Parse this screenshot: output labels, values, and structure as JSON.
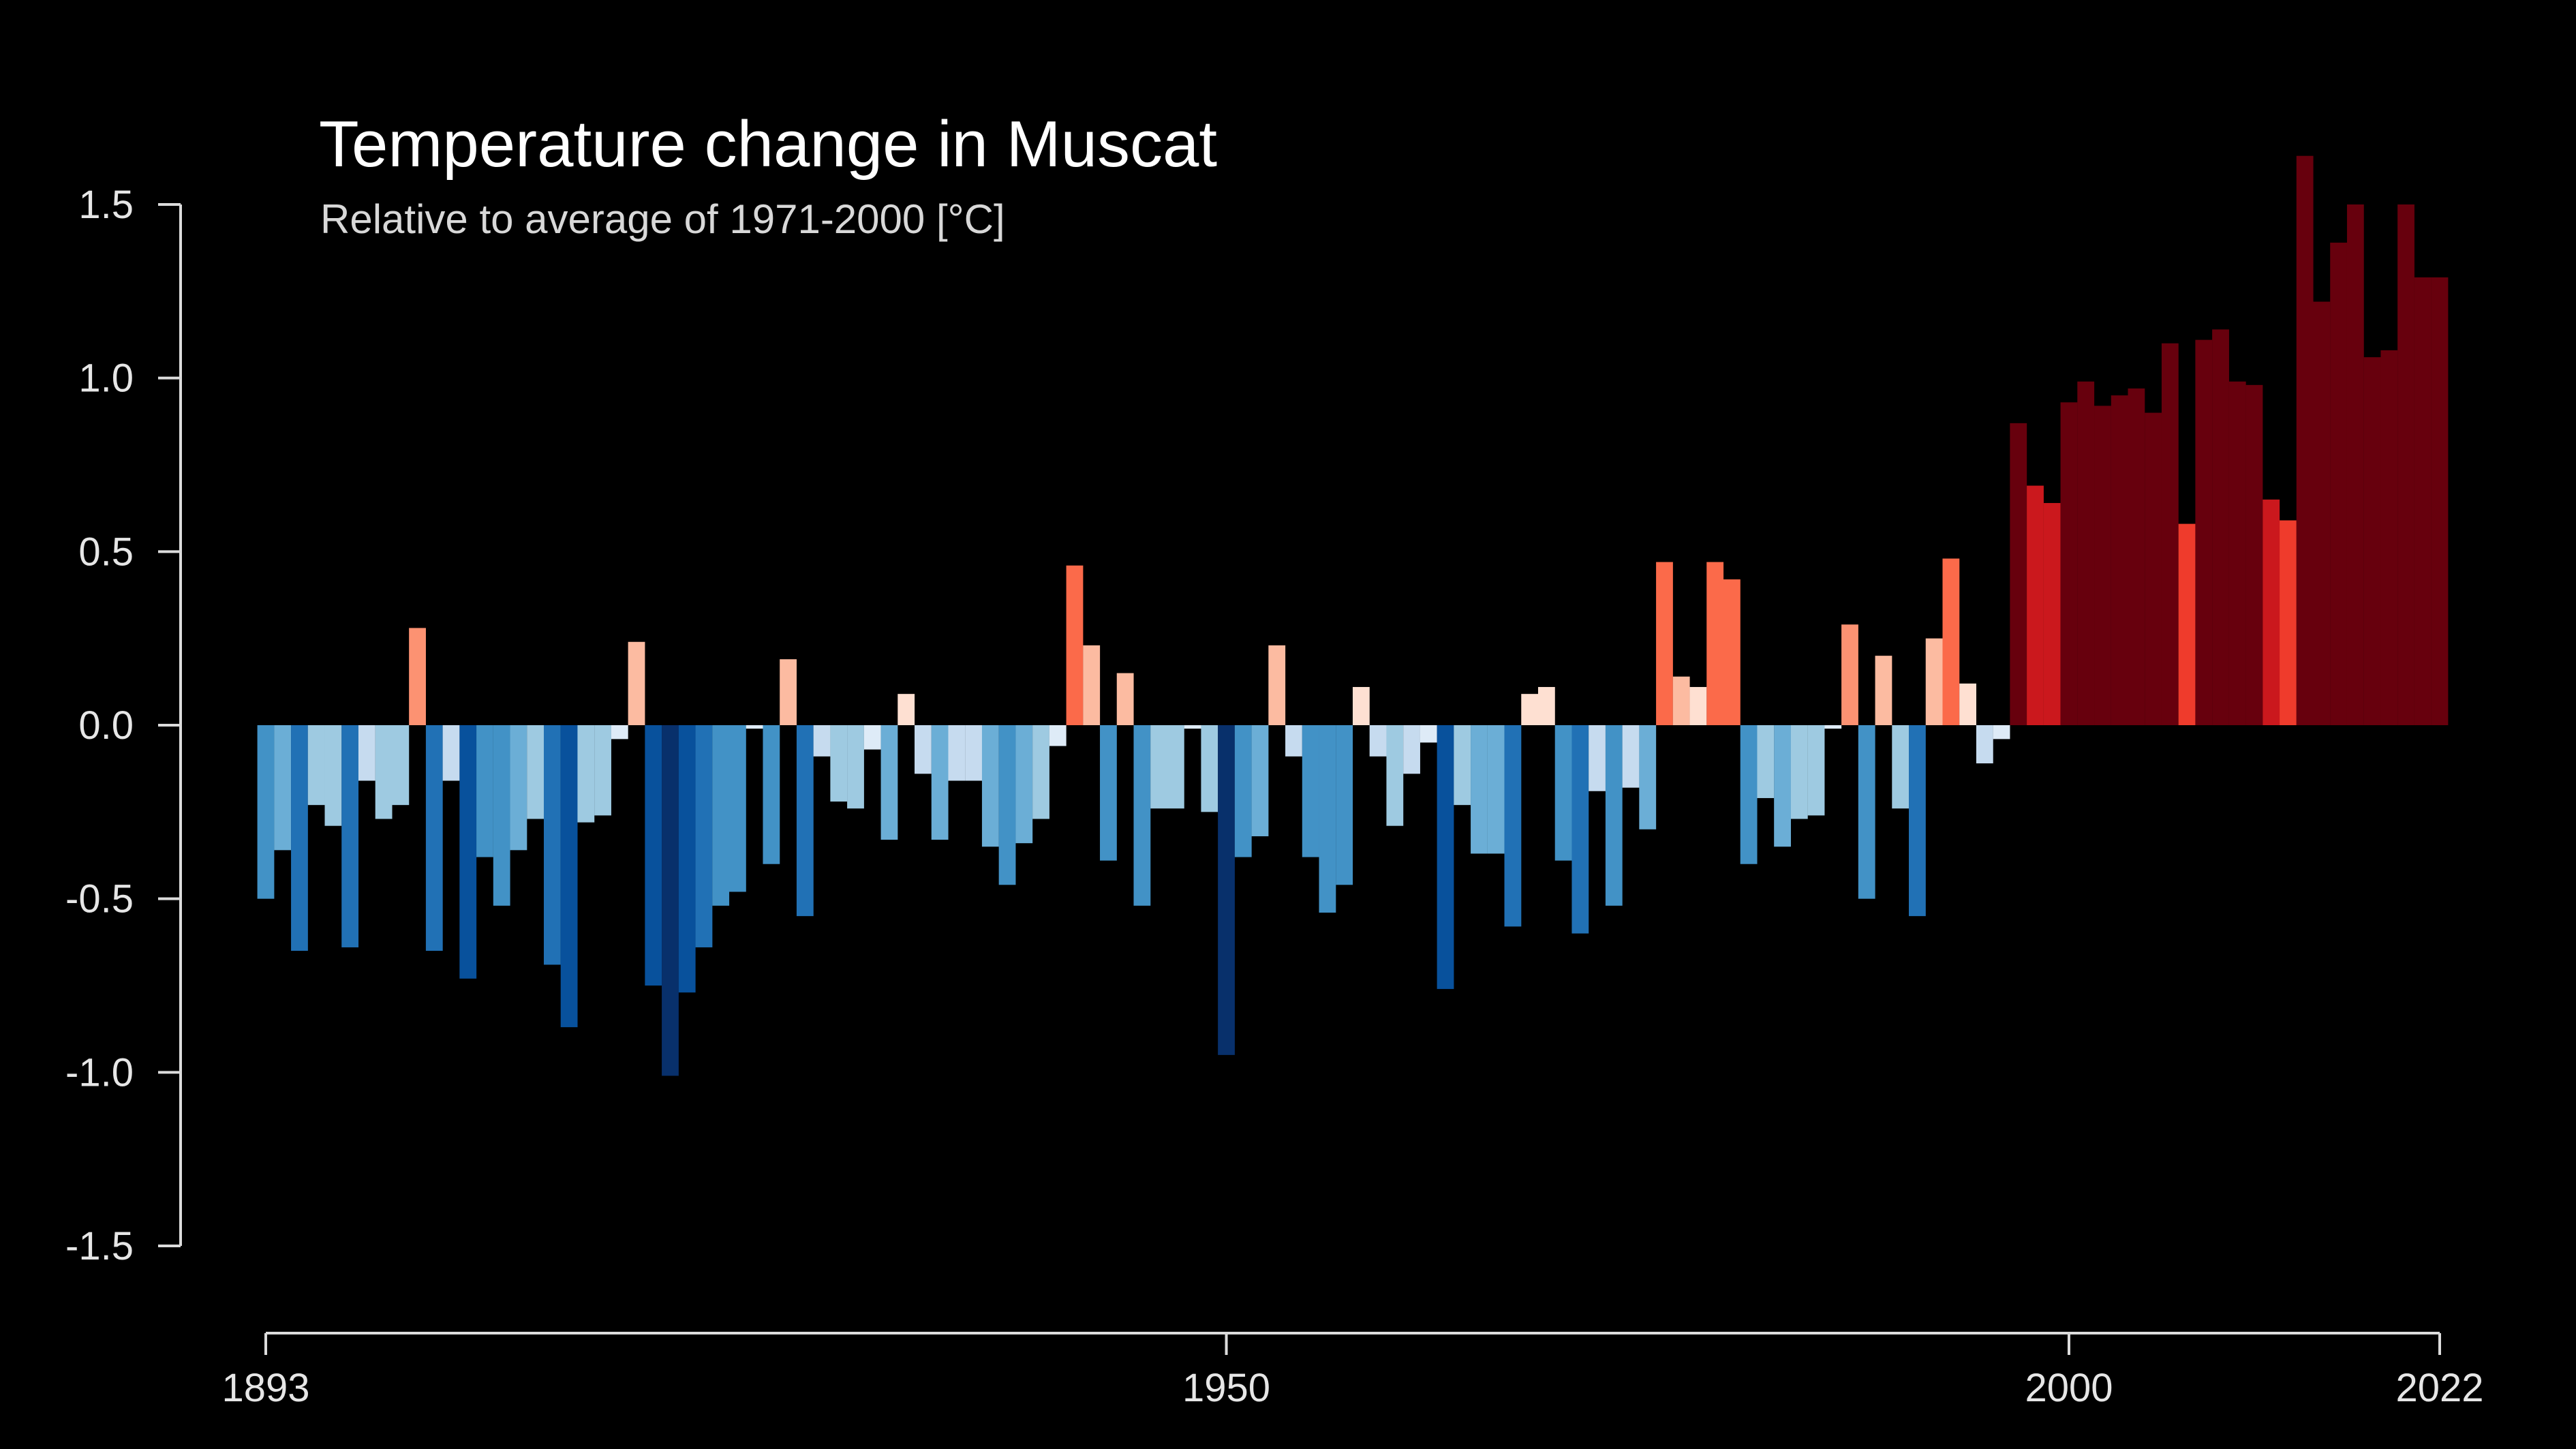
{
  "chart_data": {
    "type": "bar",
    "title": "Temperature change in Muscat",
    "subtitle": "Relative to average of 1971-2000  [°C]",
    "xlabel": "",
    "ylabel": "",
    "ylim": [
      -1.5,
      1.5
    ],
    "xlim": [
      1893,
      2022
    ],
    "grid": false,
    "legend": "none",
    "y_ticks": [
      "1.5",
      "1.0",
      "0.5",
      "0.0",
      "-0.5",
      "-1.0",
      "-1.5"
    ],
    "x_ticks": [
      "1893",
      "1950",
      "2000",
      "2022"
    ],
    "x": [
      1893,
      1894,
      1895,
      1896,
      1897,
      1898,
      1899,
      1900,
      1901,
      1902,
      1903,
      1904,
      1905,
      1906,
      1907,
      1908,
      1909,
      1910,
      1911,
      1912,
      1913,
      1914,
      1915,
      1916,
      1917,
      1918,
      1919,
      1920,
      1921,
      1922,
      1923,
      1924,
      1925,
      1926,
      1927,
      1928,
      1929,
      1930,
      1931,
      1932,
      1933,
      1934,
      1935,
      1936,
      1937,
      1938,
      1939,
      1940,
      1941,
      1942,
      1943,
      1944,
      1945,
      1946,
      1947,
      1948,
      1949,
      1950,
      1951,
      1952,
      1953,
      1954,
      1955,
      1956,
      1957,
      1958,
      1959,
      1960,
      1961,
      1962,
      1963,
      1964,
      1965,
      1966,
      1967,
      1968,
      1969,
      1970,
      1971,
      1972,
      1973,
      1974,
      1975,
      1976,
      1977,
      1978,
      1979,
      1980,
      1981,
      1982,
      1983,
      1984,
      1985,
      1986,
      1987,
      1988,
      1989,
      1990,
      1991,
      1992,
      1993,
      1994,
      1995,
      1996,
      1997,
      1998,
      1999,
      2000,
      2001,
      2002,
      2003,
      2004,
      2005,
      2006,
      2007,
      2008,
      2009,
      2010,
      2011,
      2012,
      2013,
      2014,
      2015,
      2016,
      2017,
      2018,
      2019,
      2020,
      2021,
      2022
    ],
    "values": [
      -0.5,
      -0.36,
      -0.65,
      -0.23,
      -0.29,
      -0.64,
      -0.16,
      -0.27,
      -0.23,
      0.28,
      -0.65,
      -0.16,
      -0.73,
      -0.38,
      -0.52,
      -0.36,
      -0.27,
      -0.69,
      -0.87,
      -0.28,
      -0.26,
      -0.04,
      0.24,
      -0.75,
      -1.01,
      -0.77,
      -0.64,
      -0.52,
      -0.48,
      -0.01,
      -0.4,
      0.19,
      -0.55,
      -0.09,
      -0.22,
      -0.24,
      -0.07,
      -0.33,
      0.09,
      -0.14,
      -0.33,
      -0.16,
      -0.16,
      -0.35,
      -0.46,
      -0.34,
      -0.27,
      -0.06,
      0.46,
      0.23,
      -0.39,
      0.15,
      -0.52,
      -0.24,
      -0.24,
      -0.01,
      -0.25,
      -0.95,
      -0.38,
      -0.32,
      0.23,
      -0.09,
      -0.38,
      -0.54,
      -0.46,
      0.11,
      -0.09,
      -0.29,
      -0.14,
      -0.05,
      -0.76,
      -0.23,
      -0.37,
      -0.37,
      -0.58,
      0.09,
      0.11,
      -0.39,
      -0.6,
      -0.19,
      -0.52,
      -0.18,
      -0.3,
      0.47,
      0.14,
      0.11,
      0.47,
      0.42,
      -0.4,
      -0.21,
      -0.35,
      -0.27,
      -0.26,
      -0.01,
      0.29,
      -0.5,
      0.2,
      -0.24,
      -0.55,
      0.25,
      0.48,
      0.12,
      -0.11,
      -0.04,
      0.87,
      0.69,
      0.64,
      0.93,
      0.99,
      0.92,
      0.95,
      0.97,
      0.9,
      1.1,
      0.58,
      1.11,
      1.14,
      0.99,
      0.98,
      0.65,
      0.59,
      1.64,
      1.22,
      1.39,
      1.5,
      1.06,
      1.08,
      1.5,
      1.29,
      1.29
    ]
  }
}
